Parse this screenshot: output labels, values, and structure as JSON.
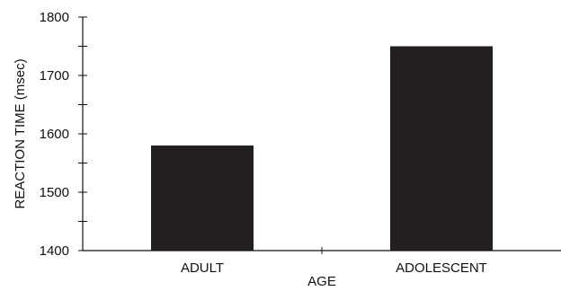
{
  "chart_data": {
    "type": "bar",
    "categories": [
      "ADULT",
      "ADOLESCENT"
    ],
    "values": [
      1580,
      1750
    ],
    "xlabel": "AGE",
    "ylabel": "REACTION TIME (msec)",
    "ylim": [
      1400,
      1800
    ],
    "yticks": [
      1400,
      1500,
      1600,
      1700,
      1800
    ],
    "minor_tick_step": 50,
    "grid": false,
    "legend": "none",
    "bar_color": "#231f20",
    "axis_color": "#111111"
  }
}
